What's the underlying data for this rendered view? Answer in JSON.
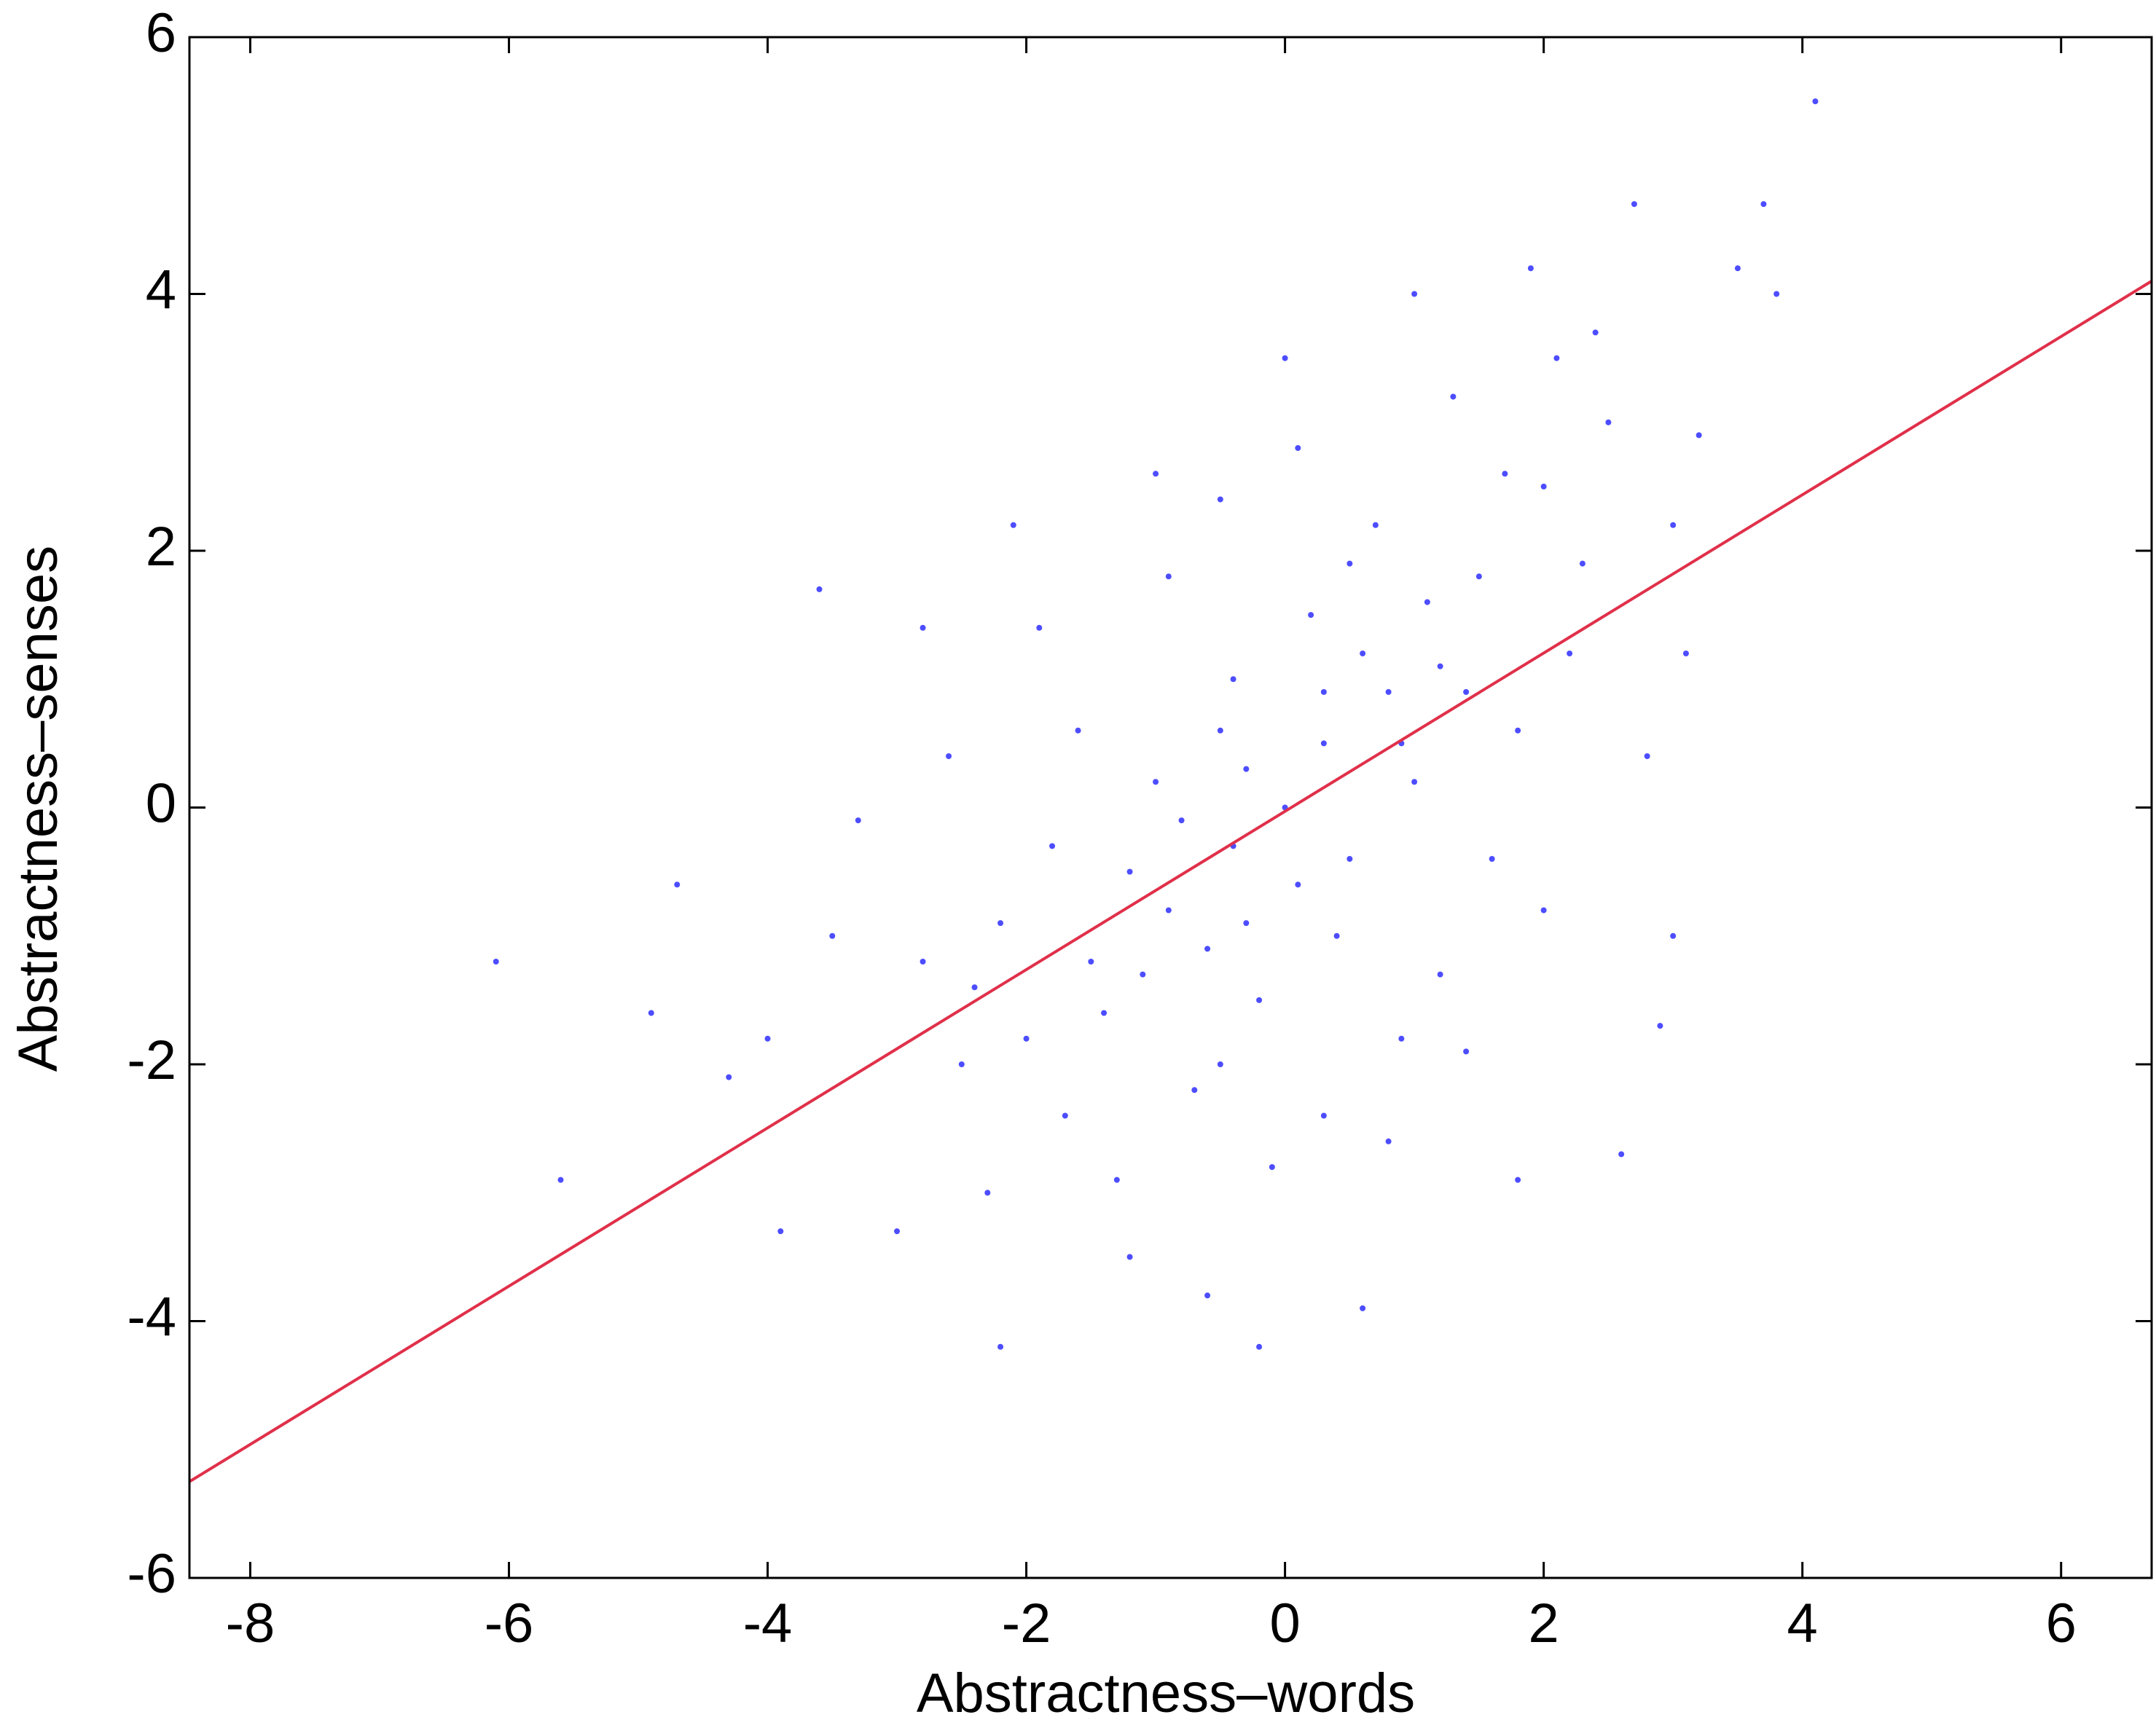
{
  "chart_data": {
    "type": "scatter",
    "xlabel": "Abstractness–words",
    "ylabel": "Abstractness–senses",
    "xlim": [
      -8.47,
      6.7
    ],
    "ylim": [
      -6,
      6
    ],
    "xticks": [
      -8,
      -6,
      -4,
      -2,
      0,
      2,
      4,
      6
    ],
    "yticks": [
      -6,
      -4,
      -2,
      0,
      2,
      4,
      6
    ],
    "points": {
      "color": "#2020ff",
      "x": [
        0,
        0.3,
        -0.4,
        0.8,
        -0.9,
        1.2,
        -1.2,
        0.5,
        -0.5,
        1.5,
        -1.5,
        0.2,
        -0.2,
        1.0,
        -1.0,
        2.0,
        -2.0,
        0.7,
        -0.7,
        1.8,
        -1.8,
        2.5,
        -2.5,
        0.1,
        -0.1,
        2.2,
        -2.2,
        1.3,
        -1.3,
        3.0,
        -3.0,
        0.4,
        -0.4,
        1.6,
        -1.6,
        2.8,
        -2.8,
        0.9,
        -0.9,
        2.4,
        -3.5,
        3.5,
        -4.7,
        -6.1,
        4.1,
        2.7,
        3.7,
        -0.2,
        -2.2,
        -3.3,
        -4.0,
        -4.9,
        -2.6,
        -3.6,
        -2.1,
        3.0,
        2.9,
        1.8,
        2.6,
        0.6,
        -0.6,
        -1.2,
        0.0,
        1.0,
        -0.5,
        -1.9,
        0.3,
        1.2,
        -2.3,
        2.0,
        0.6,
        -0.3,
        0.9,
        -0.8,
        0.1,
        1.4,
        -1.4,
        0.5,
        -0.6,
        1.1,
        -1.1,
        1.7,
        -1.7,
        0.3,
        -0.3,
        2.3,
        -2.4,
        3.2,
        3.8,
        -4.3,
        -5.6,
        -3.9,
        2.1,
        1.9,
        0.8,
        -0.5,
        1.4,
        -1.0,
        -2.8,
        3.1
      ],
      "values": [
        0,
        0.5,
        -0.3,
        0.9,
        -0.8,
        1.1,
        -0.5,
        -0.4,
        0.6,
        1.8,
        -1.2,
        1.5,
        -1.5,
        0.2,
        0.2,
        2.5,
        -1.8,
        2.2,
        -2.2,
        0.6,
        -0.3,
        3.0,
        -2.0,
        2.8,
        -2.8,
        1.2,
        -0.9,
        3.2,
        -2.9,
        2.2,
        -3.3,
        -1.0,
        1.0,
        -0.4,
        0.6,
        0.4,
        -1.2,
        -1.8,
        1.8,
        3.7,
        -1.0,
        4.2,
        -0.6,
        -1.2,
        5.5,
        4.7,
        4.7,
        -4.2,
        -4.2,
        -0.1,
        -1.8,
        -1.6,
        0.4,
        1.7,
        2.2,
        -1.0,
        -1.7,
        -2.9,
        -2.7,
        -3.9,
        -3.8,
        -3.5,
        3.5,
        4.0,
        2.4,
        1.4,
        -2.4,
        -1.3,
        -3.0,
        -0.8,
        1.2,
        0.3,
        0.5,
        -0.1,
        -0.6,
        0.9,
        -1.6,
        1.9,
        -1.1,
        1.6,
        -1.3,
        2.6,
        -2.4,
        0.9,
        -0.9,
        1.9,
        -1.4,
        2.9,
        4.0,
        -2.1,
        -2.9,
        -3.3,
        3.5,
        4.2,
        -2.6,
        -2.0,
        -1.9,
        2.6,
        1.4,
        1.2
      ]
    },
    "fit_line": {
      "color": "#e0304a",
      "x": [
        -8.47,
        6.7
      ],
      "values": [
        -5.25,
        4.1
      ]
    }
  }
}
